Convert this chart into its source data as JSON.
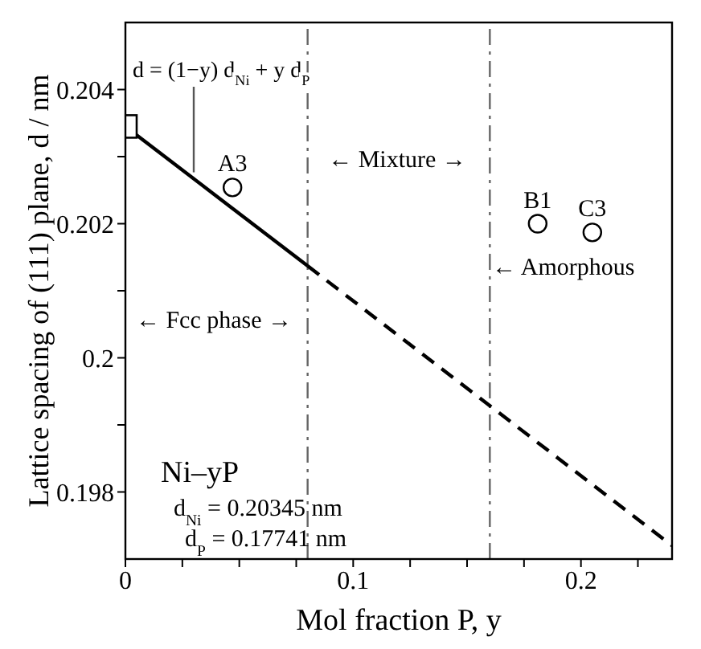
{
  "chart_data": {
    "type": "scatter",
    "xlabel": "Mol fraction P, y",
    "ylabel": "Lattice spacing of (111) plane, d / nm",
    "xlim": [
      0,
      0.24
    ],
    "ylim": [
      0.197,
      0.205
    ],
    "xticks": [
      0,
      {
        "value": 0.025,
        "label": null
      },
      {
        "value": 0.05,
        "label": null
      },
      {
        "value": 0.075,
        "label": null
      },
      0.1,
      {
        "value": 0.125,
        "label": null
      },
      {
        "value": 0.15,
        "label": null
      },
      {
        "value": 0.175,
        "label": null
      },
      0.2,
      {
        "value": 0.225,
        "label": null
      }
    ],
    "yticks": [
      0.198,
      {
        "value": 0.199,
        "label": null
      },
      0.2,
      {
        "value": 0.201,
        "label": null
      },
      0.202,
      {
        "value": 0.203,
        "label": null
      },
      0.204
    ],
    "series": [
      {
        "type": "line",
        "x": [
          0,
          0.08
        ],
        "values": [
          0.20345,
          0.20137
        ],
        "color": "#000000",
        "line_style": "solid",
        "marker": "none"
      },
      {
        "type": "line",
        "x": [
          0.08,
          0.24
        ],
        "values": [
          0.20137,
          0.1972
        ],
        "color": "#000000",
        "line_style": "dashed",
        "marker": "none"
      },
      {
        "x": [
          0
        ],
        "values": [
          0.20345
        ],
        "color": "#000000",
        "marker": "square"
      },
      {
        "x": [
          0.047,
          0.181,
          0.205
        ],
        "values": [
          0.20254,
          0.202,
          0.20187
        ],
        "color": "#000000",
        "marker": "circle"
      }
    ],
    "ref_lines": [
      {
        "axis": "x",
        "value": 0.08,
        "color": "#666666",
        "line_style": "dashed"
      },
      {
        "axis": "x",
        "value": 0.16,
        "color": "#666666",
        "line_style": "dashed"
      }
    ],
    "annotations": [
      {
        "text": "d = (1−y) d$_{Ni}$ + y d$_{P}$",
        "x": 0.03,
        "y": 0.20267
      },
      "Ni–yP",
      "d$_{Ni}$ = 0.20345 nm",
      "d$_{P}$ = 0.17741 nm",
      {
        "text": "A3",
        "x": 0.047,
        "y": 0.20254
      },
      {
        "text": "B1",
        "x": 0.181,
        "y": 0.202
      },
      {
        "text": "C3",
        "x": 0.205,
        "y": 0.20187
      },
      "← Mixture →",
      "← Amorphous",
      "← Fcc phase →"
    ]
  }
}
